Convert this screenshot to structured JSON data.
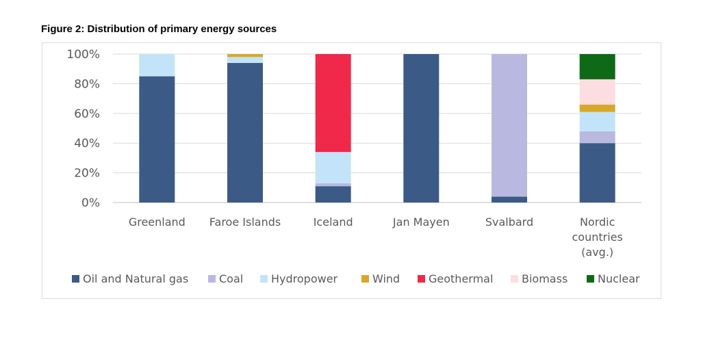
{
  "figure": {
    "title": "Figure 2: Distribution of primary energy sources"
  },
  "colors": {
    "Oil and Natural gas": "#3b5a86",
    "Coal": "#b9b9e0",
    "Hydropower": "#c3e4f8",
    "Wind": "#d9a72a",
    "Geothermal": "#f0294a",
    "Biomass": "#fcdde2",
    "Nuclear": "#0e6a16"
  },
  "chart_data": {
    "type": "bar",
    "stacked": true,
    "categories": [
      "Greenland",
      "Faroe Islands",
      "Iceland",
      "Jan Mayen",
      "Svalbard",
      "Nordic countries (avg.)"
    ],
    "category_lines": [
      [
        "Greenland"
      ],
      [
        "Faroe Islands"
      ],
      [
        "Iceland"
      ],
      [
        "Jan Mayen"
      ],
      [
        "Svalbard"
      ],
      [
        "Nordic",
        "countries",
        "(avg.)"
      ]
    ],
    "series": [
      {
        "name": "Oil and Natural gas",
        "values": [
          85,
          94,
          11,
          100,
          4,
          40
        ]
      },
      {
        "name": "Coal",
        "values": [
          0,
          0,
          2,
          0,
          96,
          8
        ]
      },
      {
        "name": "Hydropower",
        "values": [
          15,
          4,
          21,
          0,
          0,
          13
        ]
      },
      {
        "name": "Wind",
        "values": [
          0,
          2,
          0,
          0,
          0,
          5
        ]
      },
      {
        "name": "Geothermal",
        "values": [
          0,
          0,
          66,
          0,
          0,
          0
        ]
      },
      {
        "name": "Biomass",
        "values": [
          0,
          0,
          0,
          0,
          0,
          17
        ]
      },
      {
        "name": "Nuclear",
        "values": [
          0,
          0,
          0,
          0,
          0,
          17
        ]
      }
    ],
    "yticks": [
      "0%",
      "20%",
      "40%",
      "60%",
      "80%",
      "100%"
    ],
    "ylim": [
      0,
      100
    ],
    "grid": true,
    "legend_position": "bottom"
  }
}
